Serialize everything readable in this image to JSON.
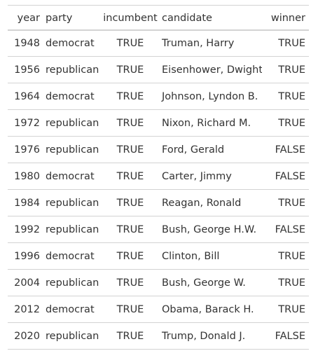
{
  "table": {
    "headers": {
      "year": "year",
      "party": "party",
      "incumbent": "incumbent",
      "candidate": "candidate",
      "winner": "winner"
    },
    "rows": [
      {
        "year": "1948",
        "party": "democrat",
        "incumbent": "TRUE",
        "candidate": "Truman, Harry",
        "winner": "TRUE"
      },
      {
        "year": "1956",
        "party": "republican",
        "incumbent": "TRUE",
        "candidate": "Eisenhower, Dwight",
        "winner": "TRUE"
      },
      {
        "year": "1964",
        "party": "democrat",
        "incumbent": "TRUE",
        "candidate": "Johnson, Lyndon B.",
        "winner": "TRUE"
      },
      {
        "year": "1972",
        "party": "republican",
        "incumbent": "TRUE",
        "candidate": "Nixon, Richard M.",
        "winner": "TRUE"
      },
      {
        "year": "1976",
        "party": "republican",
        "incumbent": "TRUE",
        "candidate": "Ford, Gerald",
        "winner": "FALSE"
      },
      {
        "year": "1980",
        "party": "democrat",
        "incumbent": "TRUE",
        "candidate": "Carter, Jimmy",
        "winner": "FALSE"
      },
      {
        "year": "1984",
        "party": "republican",
        "incumbent": "TRUE",
        "candidate": "Reagan, Ronald",
        "winner": "TRUE"
      },
      {
        "year": "1992",
        "party": "republican",
        "incumbent": "TRUE",
        "candidate": "Bush, George H.W.",
        "winner": "FALSE"
      },
      {
        "year": "1996",
        "party": "democrat",
        "incumbent": "TRUE",
        "candidate": "Clinton, Bill",
        "winner": "TRUE"
      },
      {
        "year": "2004",
        "party": "republican",
        "incumbent": "TRUE",
        "candidate": "Bush, George W.",
        "winner": "TRUE"
      },
      {
        "year": "2012",
        "party": "democrat",
        "incumbent": "TRUE",
        "candidate": "Obama, Barack H.",
        "winner": "TRUE"
      },
      {
        "year": "2020",
        "party": "republican",
        "incumbent": "TRUE",
        "candidate": "Trump, Donald J.",
        "winner": "FALSE"
      }
    ]
  }
}
